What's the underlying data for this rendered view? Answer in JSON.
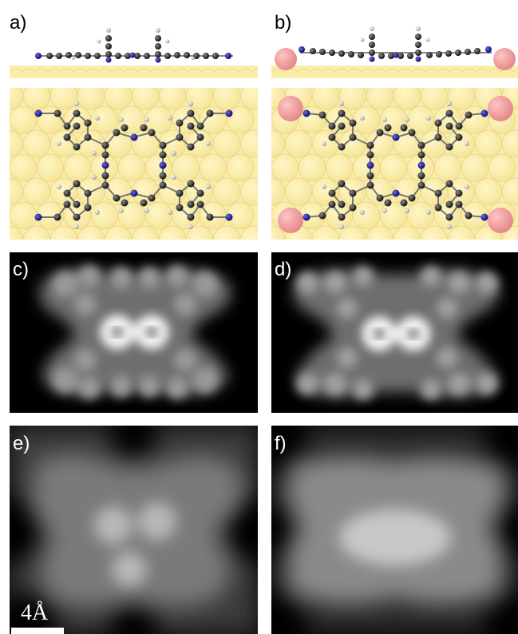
{
  "panels": {
    "a": {
      "label": "a)"
    },
    "b": {
      "label": "b)"
    },
    "c": {
      "label": "c)"
    },
    "d": {
      "label": "d)"
    },
    "e": {
      "label": "e)"
    },
    "f": {
      "label": "f)"
    }
  },
  "scalebar": {
    "label": "4Å"
  },
  "colors": {
    "surface": "#fbeea8",
    "surface_atom_edge": "#e6d28a",
    "carbon": "#2b2b2b",
    "nitrogen": "#1a1aa0",
    "hydrogen": "#e8e8e8",
    "adatom": "#f4a0a0",
    "afm_background": "#000000"
  }
}
